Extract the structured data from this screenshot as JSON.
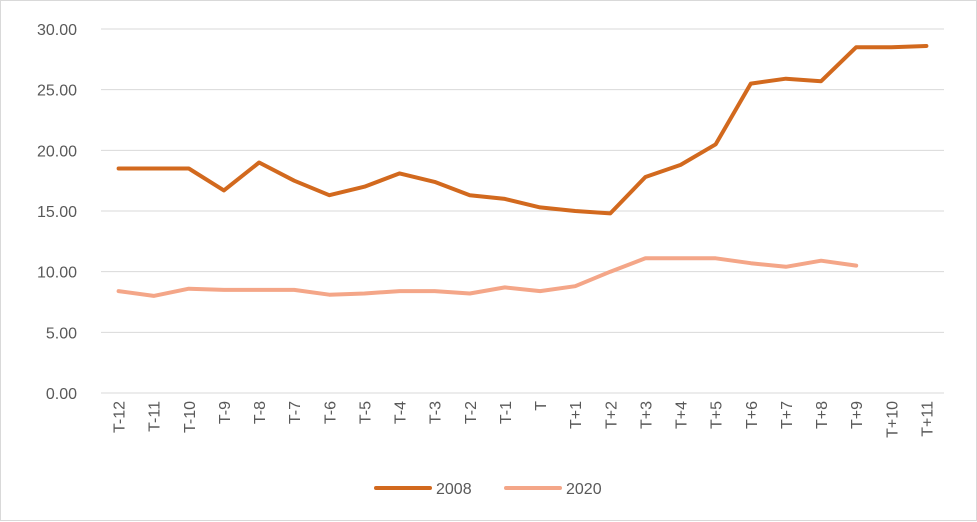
{
  "chart_data": {
    "type": "line",
    "title": "",
    "xlabel": "",
    "ylabel": "",
    "categories": [
      "T-12",
      "T-11",
      "T-10",
      "T-9",
      "T-8",
      "T-7",
      "T-6",
      "T-5",
      "T-4",
      "T-3",
      "T-2",
      "T-1",
      "T",
      "T+1",
      "T+2",
      "T+3",
      "T+4",
      "T+5",
      "T+6",
      "T+7",
      "T+8",
      "T+9",
      "T+10",
      "T+11"
    ],
    "y_ticks": [
      "0.00",
      "5.00",
      "10.00",
      "15.00",
      "20.00",
      "25.00",
      "30.00"
    ],
    "ylim": [
      0,
      30
    ],
    "grid": "horizontal",
    "legend_position": "bottom",
    "series": [
      {
        "name": "2008",
        "color": "#D2691E",
        "values": [
          18.5,
          18.5,
          18.5,
          16.7,
          19.0,
          17.5,
          16.3,
          17.0,
          18.1,
          17.4,
          16.3,
          16.0,
          15.3,
          15.0,
          14.8,
          17.8,
          18.8,
          20.5,
          25.5,
          25.9,
          25.7,
          28.5,
          28.5,
          28.6
        ]
      },
      {
        "name": "2020",
        "color": "#F4A688",
        "values": [
          8.4,
          8.0,
          8.6,
          8.5,
          8.5,
          8.5,
          8.1,
          8.2,
          8.4,
          8.4,
          8.2,
          8.7,
          8.4,
          8.8,
          10.0,
          11.1,
          11.1,
          11.1,
          10.7,
          10.4,
          10.9,
          10.5,
          null,
          null
        ]
      }
    ]
  }
}
